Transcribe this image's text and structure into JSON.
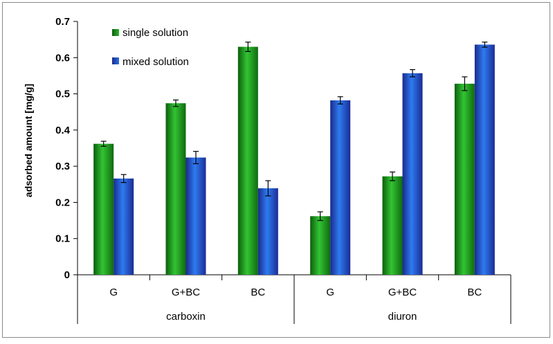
{
  "chart_data": {
    "type": "bar",
    "title": "",
    "ylabel": "adsorbed amount [mg/g]",
    "ylim": [
      0,
      0.7
    ],
    "yticks": [
      "0",
      "0.1",
      "0.2",
      "0.3",
      "0.4",
      "0.5",
      "0.6",
      "0.7"
    ],
    "grid": false,
    "legend_position": "top-left",
    "groups": [
      {
        "label": "carboxin",
        "categories": [
          "G",
          "G+BC",
          "BC"
        ]
      },
      {
        "label": "diuron",
        "categories": [
          "G",
          "G+BC",
          "BC"
        ]
      }
    ],
    "categories": [
      "G",
      "G+BC",
      "BC",
      "G",
      "G+BC",
      "BC"
    ],
    "series": [
      {
        "name": "single solution",
        "color": "#1f8f1f",
        "values": [
          0.362,
          0.474,
          0.63,
          0.162,
          0.272,
          0.528
        ],
        "errors": [
          0.007,
          0.009,
          0.013,
          0.012,
          0.012,
          0.019
        ]
      },
      {
        "name": "mixed solution",
        "color": "#1f3fd6",
        "values": [
          0.266,
          0.324,
          0.239,
          0.482,
          0.557,
          0.636
        ],
        "errors": [
          0.011,
          0.017,
          0.021,
          0.01,
          0.01,
          0.007
        ]
      }
    ]
  }
}
